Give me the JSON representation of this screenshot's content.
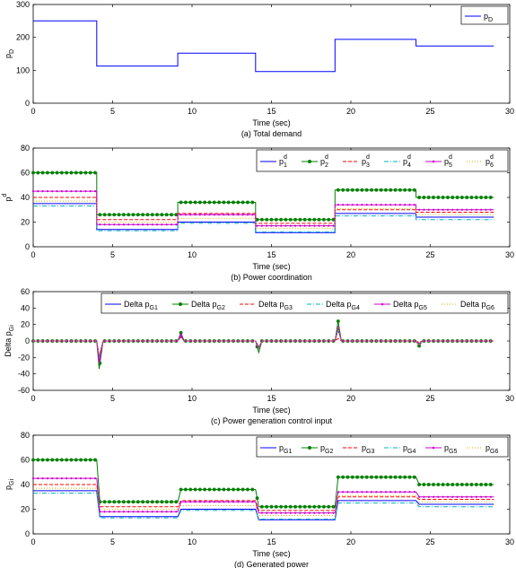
{
  "chart_data": [
    {
      "type": "line",
      "caption": "(a) Total demand",
      "xlabel": "Time (sec)",
      "ylabel": "p",
      "ylabel_sub": "D",
      "xlim": [
        0,
        30
      ],
      "ylim": [
        0,
        300
      ],
      "xticks": [
        "0",
        "5",
        "10",
        "15",
        "20",
        "25",
        "30"
      ],
      "yticks": [
        "0",
        "100",
        "200",
        "300"
      ],
      "legend_position": "top-right",
      "series": [
        {
          "name": "p",
          "sub": "D",
          "sup": "",
          "color": "#0000ff",
          "dash": "",
          "marker": "none",
          "x": [
            0,
            4,
            4,
            9.1,
            9.1,
            14,
            14,
            19,
            19,
            24.1,
            24.1,
            29
          ],
          "y": [
            250,
            250,
            113,
            113,
            152,
            152,
            96,
            96,
            194,
            194,
            174,
            174
          ]
        }
      ]
    },
    {
      "type": "line",
      "caption": "(b) Power coordination",
      "xlabel": "Time (sec)",
      "ylabel": "p",
      "ylabel_sub": "",
      "ylabel_sup": "d",
      "xlim": [
        0,
        30
      ],
      "ylim": [
        0,
        80
      ],
      "xticks": [
        "0",
        "5",
        "10",
        "15",
        "20",
        "25",
        "30"
      ],
      "yticks": [
        "0",
        "20",
        "40",
        "60",
        "80"
      ],
      "legend_position": "top-right",
      "series": [
        {
          "name": "p",
          "sub": "1",
          "sup": "d",
          "color": "#0000ff",
          "dash": "",
          "marker": "none",
          "x": [
            0,
            4,
            4,
            9.1,
            9.1,
            14,
            14,
            19,
            19,
            24.1,
            24.1,
            29
          ],
          "y": [
            35,
            35,
            14,
            14,
            20,
            20,
            11.5,
            11.5,
            27,
            27,
            24,
            24
          ]
        },
        {
          "name": "p",
          "sub": "2",
          "sup": "d",
          "color": "#008000",
          "dash": "",
          "marker": "circle",
          "x": [
            0,
            4,
            4,
            9.1,
            9.1,
            14,
            14,
            19,
            19,
            24.1,
            24.1,
            29
          ],
          "y": [
            60,
            60,
            26,
            26,
            36,
            36,
            22,
            22,
            46,
            46,
            40,
            40
          ]
        },
        {
          "name": "p",
          "sub": "3",
          "sup": "d",
          "color": "#ff0000",
          "dash": "4,2",
          "marker": "none",
          "x": [
            0,
            4,
            4,
            9.1,
            9.1,
            14,
            14,
            19,
            19,
            24.1,
            24.1,
            29
          ],
          "y": [
            40,
            40,
            22,
            22,
            27,
            27,
            19,
            19,
            30,
            30,
            28,
            28
          ]
        },
        {
          "name": "p",
          "sub": "4",
          "sup": "d",
          "color": "#00b0c0",
          "dash": "5,2,1,2",
          "marker": "none",
          "x": [
            0,
            4,
            4,
            9.1,
            9.1,
            14,
            14,
            19,
            19,
            24.1,
            24.1,
            29
          ],
          "y": [
            33,
            33,
            13,
            13,
            19,
            19,
            12,
            12,
            25,
            25,
            22,
            22
          ]
        },
        {
          "name": "p",
          "sub": "5",
          "sup": "d",
          "color": "#cc00cc",
          "dash": "",
          "marker": "dot",
          "x": [
            0,
            4,
            4,
            9.1,
            9.1,
            14,
            14,
            19,
            19,
            24.1,
            24.1,
            29
          ],
          "y": [
            45,
            45,
            18,
            18,
            26,
            26,
            17,
            17,
            34,
            34,
            30,
            30
          ]
        },
        {
          "name": "p",
          "sub": "6",
          "sup": "d",
          "color": "#d4b000",
          "dash": "1,2",
          "marker": "none",
          "x": [
            0,
            4,
            4,
            9.1,
            9.1,
            14,
            14,
            19,
            19,
            24.1,
            24.1,
            29
          ],
          "y": [
            37,
            37,
            20,
            20,
            23,
            23,
            15,
            15,
            31,
            31,
            26,
            26
          ]
        }
      ]
    },
    {
      "type": "line",
      "caption": "(c) Power generation control input",
      "xlabel": "Time (sec)",
      "ylabel": "Delta p",
      "ylabel_sub": "Gi",
      "xlim": [
        0,
        30
      ],
      "ylim": [
        -60,
        60
      ],
      "xticks": [
        "0",
        "5",
        "10",
        "15",
        "20",
        "25",
        "30"
      ],
      "yticks": [
        "-60",
        "-40",
        "-20",
        "0",
        "20",
        "40",
        "60"
      ],
      "legend_position": "top-right",
      "series": [
        {
          "name": "Delta p",
          "sub": "G1",
          "sup": "",
          "color": "#0000ff",
          "dash": "",
          "marker": "none",
          "x": [
            0,
            4,
            4.15,
            4.4,
            9.1,
            9.3,
            9.5,
            14,
            14.2,
            14.4,
            19,
            19.2,
            19.4,
            24.1,
            24.3,
            24.5,
            29
          ],
          "y": [
            0,
            0,
            -20,
            0,
            0,
            6,
            0,
            0,
            -8,
            0,
            0,
            15,
            0,
            0,
            -3,
            0,
            0
          ]
        },
        {
          "name": "Delta p",
          "sub": "G2",
          "sup": "",
          "color": "#008000",
          "dash": "",
          "marker": "circle",
          "x": [
            0,
            4,
            4.15,
            4.4,
            9.1,
            9.3,
            9.5,
            14,
            14.2,
            14.4,
            19,
            19.2,
            19.4,
            24.1,
            24.3,
            24.5,
            29
          ],
          "y": [
            0,
            0,
            -34,
            0,
            0,
            10,
            0,
            0,
            -14,
            0,
            0,
            24,
            0,
            0,
            -6,
            0,
            0
          ]
        },
        {
          "name": "Delta p",
          "sub": "G3",
          "sup": "",
          "color": "#ff0000",
          "dash": "4,2",
          "marker": "none",
          "x": [
            0,
            4,
            4.15,
            4.4,
            9.1,
            9.3,
            9.5,
            14,
            14.2,
            14.4,
            19,
            19.2,
            19.4,
            24.1,
            24.3,
            24.5,
            29
          ],
          "y": [
            0,
            0,
            -18,
            0,
            0,
            5,
            0,
            0,
            -8,
            0,
            0,
            3,
            0,
            0,
            -2,
            0,
            0
          ]
        },
        {
          "name": "Delta p",
          "sub": "G4",
          "sup": "",
          "color": "#00b0c0",
          "dash": "5,2,1,2",
          "marker": "none",
          "x": [
            0,
            4,
            4.15,
            4.4,
            9.1,
            9.3,
            9.5,
            14,
            14.2,
            14.4,
            19,
            19.2,
            19.4,
            24.1,
            24.3,
            24.5,
            29
          ],
          "y": [
            0,
            0,
            -20,
            0,
            0,
            6,
            0,
            0,
            -7,
            0,
            0,
            12,
            0,
            0,
            -3,
            0,
            0
          ]
        },
        {
          "name": "Delta p",
          "sub": "G5",
          "sup": "",
          "color": "#cc00cc",
          "dash": "",
          "marker": "dot",
          "x": [
            0,
            4,
            4.15,
            4.4,
            9.1,
            9.3,
            9.5,
            14,
            14.2,
            14.4,
            19,
            19.2,
            19.4,
            24.1,
            24.3,
            24.5,
            29
          ],
          "y": [
            0,
            0,
            -27,
            0,
            0,
            8,
            0,
            0,
            -9,
            0,
            0,
            17,
            0,
            0,
            -4,
            0,
            0
          ]
        },
        {
          "name": "Delta p",
          "sub": "G6",
          "sup": "",
          "color": "#d4b000",
          "dash": "1,2",
          "marker": "none",
          "x": [
            0,
            4,
            4.15,
            4.4,
            9.1,
            9.3,
            9.5,
            14,
            14.2,
            14.4,
            19,
            19.2,
            19.4,
            24.1,
            24.3,
            24.5,
            29
          ],
          "y": [
            0,
            0,
            -17,
            0,
            0,
            3,
            0,
            0,
            -8,
            0,
            0,
            16,
            0,
            0,
            -5,
            0,
            0
          ]
        }
      ]
    },
    {
      "type": "line",
      "caption": "(d) Generated power",
      "xlabel": "Time (sec)",
      "ylabel": "p",
      "ylabel_sub": "Gi",
      "xlim": [
        0,
        30
      ],
      "ylim": [
        0,
        80
      ],
      "xticks": [
        "0",
        "5",
        "10",
        "15",
        "20",
        "25",
        "30"
      ],
      "yticks": [
        "0",
        "20",
        "40",
        "60",
        "80"
      ],
      "legend_position": "top-right",
      "series": [
        {
          "name": "p",
          "sub": "G1",
          "sup": "",
          "color": "#0000ff",
          "dash": "",
          "marker": "none",
          "x": [
            0,
            4,
            4.2,
            9.1,
            9.3,
            14,
            14.2,
            19,
            19.2,
            24.1,
            24.3,
            29
          ],
          "y": [
            35,
            35,
            14,
            14,
            20,
            20,
            11.5,
            11.5,
            27,
            27,
            24,
            24
          ]
        },
        {
          "name": "p",
          "sub": "G2",
          "sup": "",
          "color": "#008000",
          "dash": "",
          "marker": "circle",
          "x": [
            0,
            4,
            4.2,
            9.1,
            9.3,
            14,
            14.2,
            19,
            19.2,
            24.1,
            24.3,
            29
          ],
          "y": [
            60,
            60,
            26,
            26,
            36,
            36,
            22,
            22,
            46,
            46,
            40,
            40
          ]
        },
        {
          "name": "p",
          "sub": "G3",
          "sup": "",
          "color": "#ff0000",
          "dash": "4,2",
          "marker": "none",
          "x": [
            0,
            4,
            4.2,
            9.1,
            9.3,
            14,
            14.2,
            19,
            19.2,
            24.1,
            24.3,
            29
          ],
          "y": [
            40,
            40,
            22,
            22,
            27,
            27,
            19,
            19,
            30,
            30,
            28,
            28
          ]
        },
        {
          "name": "p",
          "sub": "G4",
          "sup": "",
          "color": "#00b0c0",
          "dash": "5,2,1,2",
          "marker": "none",
          "x": [
            0,
            4,
            4.2,
            9.1,
            9.3,
            14,
            14.2,
            19,
            19.2,
            24.1,
            24.3,
            29
          ],
          "y": [
            33,
            33,
            13,
            13,
            19,
            19,
            12,
            12,
            25,
            25,
            22,
            22
          ]
        },
        {
          "name": "p",
          "sub": "G5",
          "sup": "",
          "color": "#cc00cc",
          "dash": "",
          "marker": "dot",
          "x": [
            0,
            4,
            4.2,
            9.1,
            9.3,
            14,
            14.2,
            19,
            19.2,
            24.1,
            24.3,
            29
          ],
          "y": [
            45,
            45,
            18,
            18,
            26,
            26,
            17,
            17,
            34,
            34,
            30,
            30
          ]
        },
        {
          "name": "p",
          "sub": "G6",
          "sup": "",
          "color": "#d4b000",
          "dash": "1,2",
          "marker": "none",
          "x": [
            0,
            4,
            4.2,
            9.1,
            9.3,
            14,
            14.2,
            19,
            19.2,
            24.1,
            24.3,
            29
          ],
          "y": [
            37,
            37,
            20,
            20,
            23,
            23,
            15,
            15,
            31,
            31,
            26,
            26
          ]
        }
      ]
    }
  ]
}
